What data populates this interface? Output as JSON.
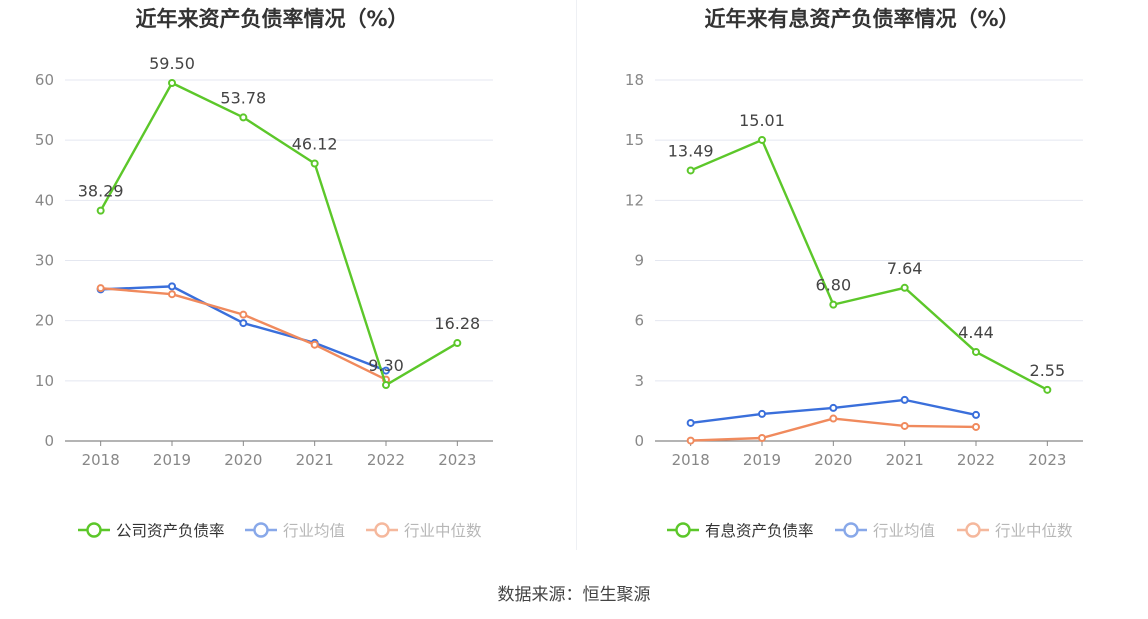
{
  "source_text": "数据来源：恒生聚源",
  "colors": {
    "company": "#5cc72a",
    "industry_avg": "#3a6fdb",
    "industry_median": "#f08a5d"
  },
  "chart_data": [
    {
      "type": "line",
      "title": "近年来资产负债率情况（%）",
      "categories": [
        "2018",
        "2019",
        "2020",
        "2021",
        "2022",
        "2023"
      ],
      "ylim": [
        0,
        60
      ],
      "yticks": [
        0,
        10,
        20,
        30,
        40,
        50,
        60
      ],
      "grid": true,
      "legend": "bottom",
      "series": [
        {
          "name": "公司资产负债率",
          "values": [
            38.29,
            59.5,
            53.78,
            46.12,
            9.3,
            16.28
          ],
          "labels": [
            "38.29",
            "59.50",
            "53.78",
            "46.12",
            "9.30",
            "16.28"
          ]
        },
        {
          "name": "行业均值",
          "values": [
            25.2,
            25.7,
            19.6,
            16.3,
            11.7,
            null
          ]
        },
        {
          "name": "行业中位数",
          "values": [
            25.4,
            24.4,
            21.0,
            16.0,
            10.2,
            null
          ]
        }
      ]
    },
    {
      "type": "line",
      "title": "近年来有息资产负债率情况（%）",
      "categories": [
        "2018",
        "2019",
        "2020",
        "2021",
        "2022",
        "2023"
      ],
      "ylim": [
        0,
        18
      ],
      "yticks": [
        0,
        3,
        6,
        9,
        12,
        15,
        18
      ],
      "grid": true,
      "legend": "bottom",
      "series": [
        {
          "name": "有息资产负债率",
          "values": [
            13.49,
            15.01,
            6.8,
            7.64,
            4.44,
            2.55
          ],
          "labels": [
            "13.49",
            "15.01",
            "6.80",
            "7.64",
            "4.44",
            "2.55"
          ]
        },
        {
          "name": "行业均值",
          "values": [
            0.9,
            1.35,
            1.65,
            2.05,
            1.3,
            null
          ]
        },
        {
          "name": "行业中位数",
          "values": [
            0.02,
            0.15,
            1.12,
            0.75,
            0.7,
            null
          ]
        }
      ]
    }
  ]
}
